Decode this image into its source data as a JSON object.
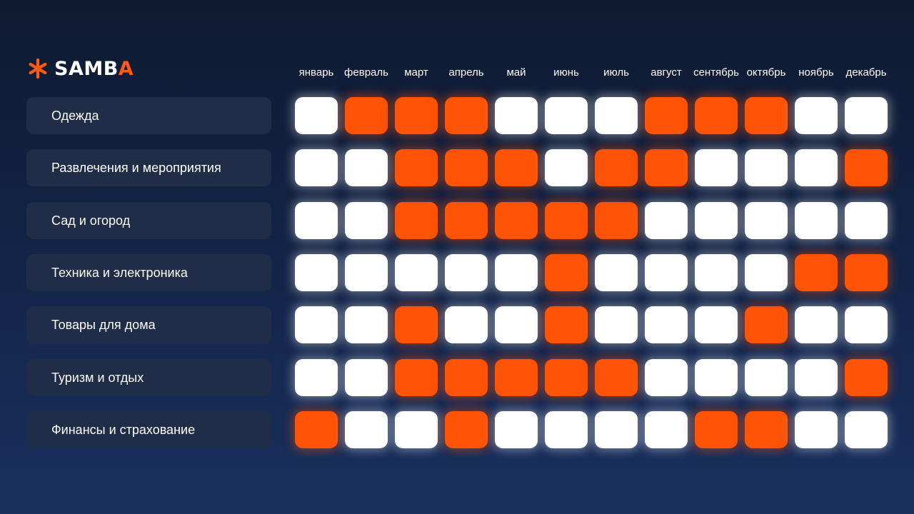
{
  "logo": {
    "text_main": "SAMB",
    "text_accent": "A",
    "icon": "asterisk-icon"
  },
  "colors": {
    "accent": "#ff5305",
    "inactive": "#ffffff",
    "label_bg": "#1f2d49",
    "background": "#142549"
  },
  "chart_data": {
    "type": "heatmap",
    "title": "",
    "columns": [
      "январь",
      "февраль",
      "март",
      "апрель",
      "май",
      "июнь",
      "июль",
      "август",
      "сентябрь",
      "октябрь",
      "ноябрь",
      "декабрь"
    ],
    "rows": [
      {
        "label": "Одежда",
        "values": [
          0,
          1,
          1,
          1,
          0,
          0,
          0,
          1,
          1,
          1,
          0,
          0
        ]
      },
      {
        "label": "Развлечения и мероприятия",
        "values": [
          0,
          0,
          1,
          1,
          1,
          0,
          1,
          1,
          0,
          0,
          0,
          1
        ]
      },
      {
        "label": "Сад и огород",
        "values": [
          0,
          0,
          1,
          1,
          1,
          1,
          1,
          0,
          0,
          0,
          0,
          0
        ]
      },
      {
        "label": "Техника и электроника",
        "values": [
          0,
          0,
          0,
          0,
          0,
          1,
          0,
          0,
          0,
          0,
          1,
          1
        ]
      },
      {
        "label": "Товары для дома",
        "values": [
          0,
          0,
          1,
          0,
          0,
          1,
          0,
          0,
          0,
          1,
          0,
          0
        ]
      },
      {
        "label": "Туризм и отдых",
        "values": [
          0,
          0,
          1,
          1,
          1,
          1,
          1,
          0,
          0,
          0,
          0,
          1
        ]
      },
      {
        "label": "Финансы и страхование",
        "values": [
          1,
          0,
          0,
          1,
          0,
          0,
          0,
          0,
          1,
          1,
          0,
          0
        ]
      }
    ]
  }
}
